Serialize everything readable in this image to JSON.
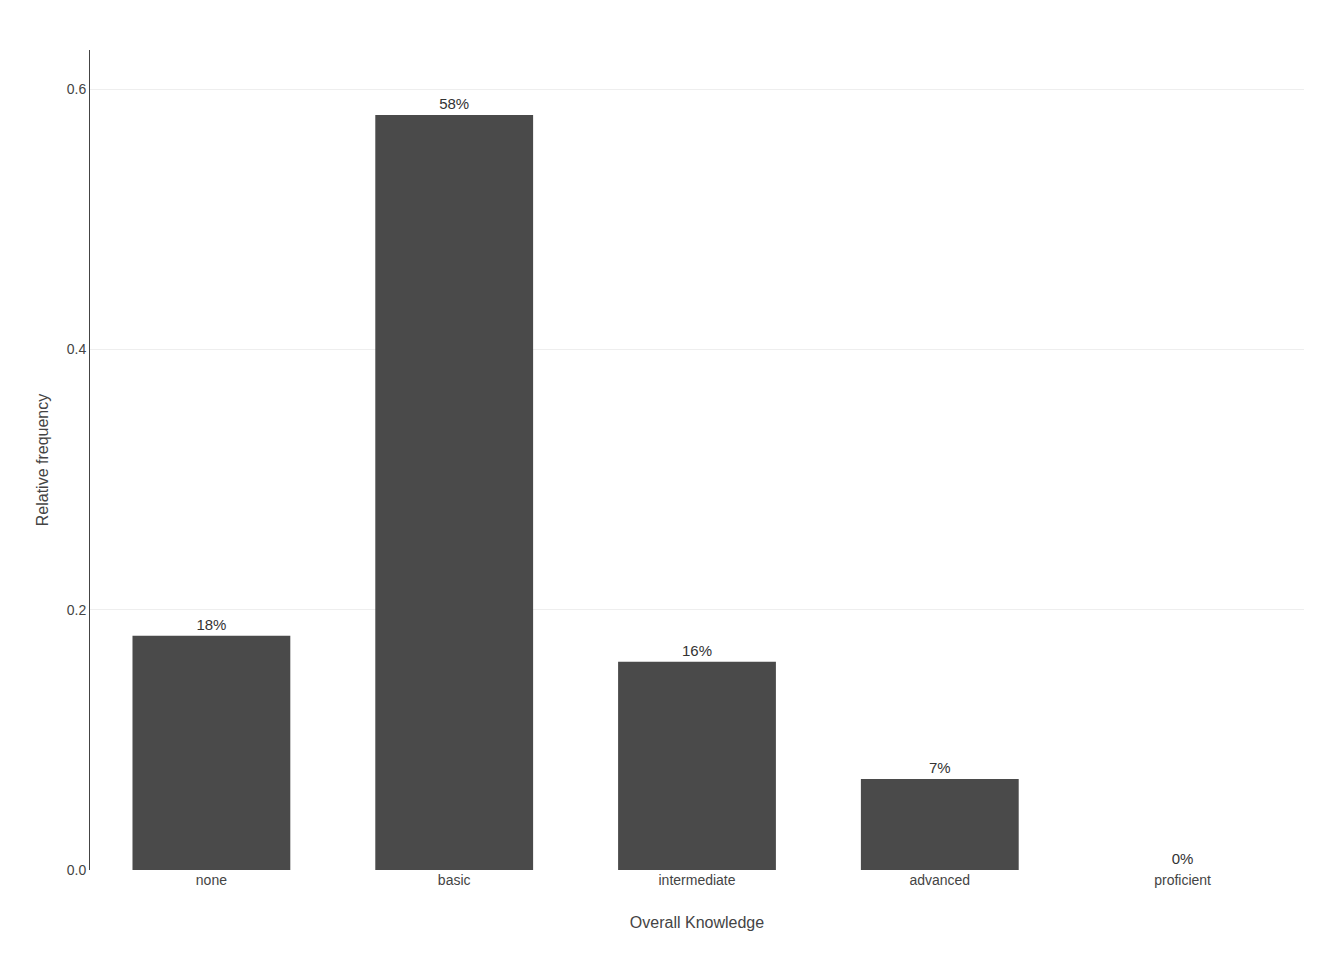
{
  "chart_data": {
    "type": "bar",
    "categories": [
      "none",
      "basic",
      "intermediate",
      "advanced",
      "proficient"
    ],
    "values": [
      0.18,
      0.58,
      0.16,
      0.07,
      0.0
    ],
    "value_labels": [
      "18%",
      "58%",
      "16%",
      "7%",
      "0%"
    ],
    "color": "#4a4a4a",
    "xlabel": "Overall Knowledge",
    "ylabel": "Relative frequency",
    "ylim": [
      0,
      0.63
    ],
    "yticks": [
      {
        "value": 0.0,
        "label": "0.0"
      },
      0.2,
      0.4,
      0.6
    ],
    "grid": true
  }
}
